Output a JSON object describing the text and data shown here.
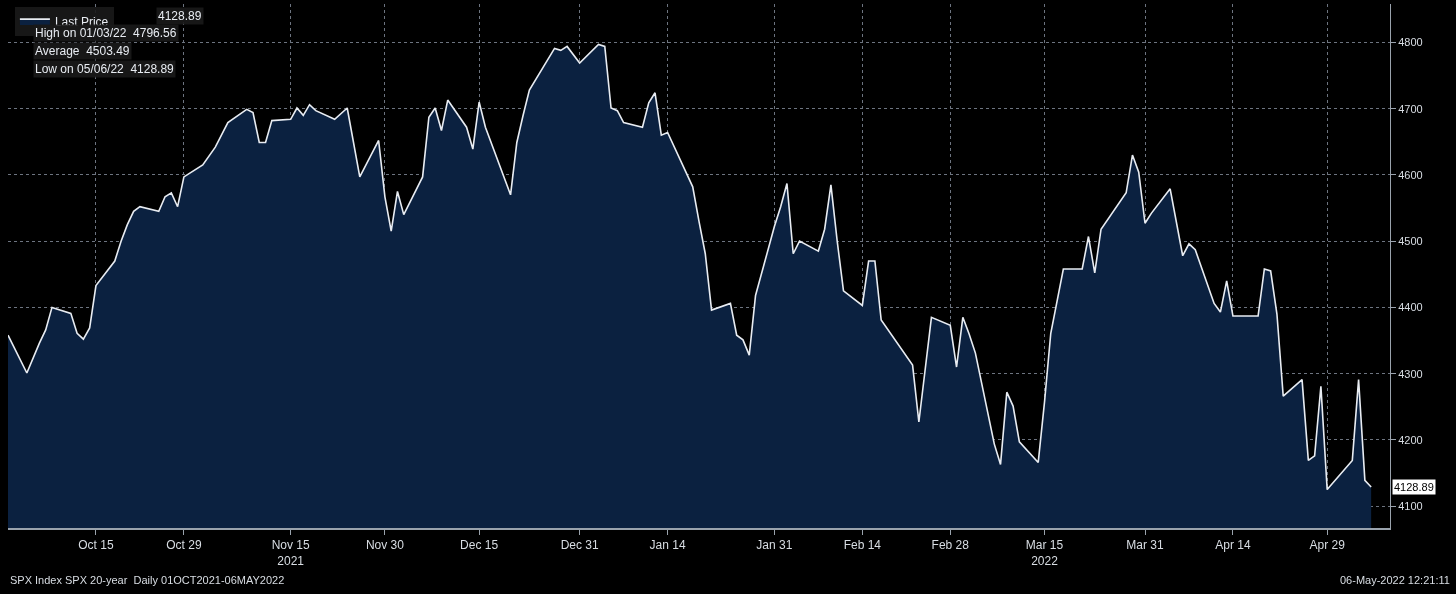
{
  "chart_data": {
    "type": "area",
    "x": [
      "2021-10-01",
      "2021-10-04",
      "2021-10-06",
      "2021-10-07",
      "2021-10-08",
      "2021-10-11",
      "2021-10-12",
      "2021-10-13",
      "2021-10-14",
      "2021-10-15",
      "2021-10-18",
      "2021-10-19",
      "2021-10-20",
      "2021-10-21",
      "2021-10-22",
      "2021-10-25",
      "2021-10-26",
      "2021-10-27",
      "2021-10-28",
      "2021-10-29",
      "2021-11-01",
      "2021-11-03",
      "2021-11-05",
      "2021-11-08",
      "2021-11-09",
      "2021-11-10",
      "2021-11-11",
      "2021-11-12",
      "2021-11-15",
      "2021-11-16",
      "2021-11-17",
      "2021-11-18",
      "2021-11-19",
      "2021-11-22",
      "2021-11-24",
      "2021-11-26",
      "2021-11-29",
      "2021-11-30",
      "2021-12-01",
      "2021-12-02",
      "2021-12-03",
      "2021-12-06",
      "2021-12-07",
      "2021-12-08",
      "2021-12-09",
      "2021-12-10",
      "2021-12-13",
      "2021-12-14",
      "2021-12-15",
      "2021-12-16",
      "2021-12-20",
      "2021-12-21",
      "2021-12-22",
      "2021-12-23",
      "2021-12-27",
      "2021-12-28",
      "2021-12-29",
      "2021-12-31",
      "2022-01-03",
      "2022-01-04",
      "2022-01-05",
      "2022-01-06",
      "2022-01-07",
      "2022-01-10",
      "2022-01-11",
      "2022-01-12",
      "2022-01-13",
      "2022-01-14",
      "2022-01-18",
      "2022-01-19",
      "2022-01-20",
      "2022-01-21",
      "2022-01-24",
      "2022-01-25",
      "2022-01-26",
      "2022-01-27",
      "2022-01-28",
      "2022-01-31",
      "2022-02-01",
      "2022-02-02",
      "2022-02-03",
      "2022-02-04",
      "2022-02-07",
      "2022-02-08",
      "2022-02-09",
      "2022-02-10",
      "2022-02-11",
      "2022-02-14",
      "2022-02-15",
      "2022-02-16",
      "2022-02-17",
      "2022-02-22",
      "2022-02-23",
      "2022-02-25",
      "2022-02-28",
      "2022-03-01",
      "2022-03-02",
      "2022-03-03",
      "2022-03-04",
      "2022-03-07",
      "2022-03-08",
      "2022-03-09",
      "2022-03-10",
      "2022-03-11",
      "2022-03-14",
      "2022-03-15",
      "2022-03-16",
      "2022-03-18",
      "2022-03-21",
      "2022-03-22",
      "2022-03-23",
      "2022-03-24",
      "2022-03-28",
      "2022-03-29",
      "2022-03-30",
      "2022-03-31",
      "2022-04-01",
      "2022-04-04",
      "2022-04-06",
      "2022-04-07",
      "2022-04-08",
      "2022-04-11",
      "2022-04-12",
      "2022-04-13",
      "2022-04-14",
      "2022-04-18",
      "2022-04-19",
      "2022-04-20",
      "2022-04-21",
      "2022-04-22",
      "2022-04-25",
      "2022-04-26",
      "2022-04-27",
      "2022-04-28",
      "2022-04-29",
      "2022-05-03",
      "2022-05-04",
      "2022-05-05",
      "2022-05-06"
    ],
    "series": [
      {
        "name": "Last Price",
        "color": "#0b2140",
        "values": [
          4358,
          4301,
          4346,
          4366,
          4400,
          4391,
          4361,
          4352,
          4369,
          4433,
          4470,
          4500,
          4525,
          4545,
          4552,
          4545,
          4567,
          4573,
          4552,
          4597,
          4615,
          4642,
          4679,
          4699,
          4694,
          4649,
          4649,
          4682,
          4684,
          4701,
          4690,
          4706,
          4697,
          4684,
          4701,
          4597,
          4652,
          4567,
          4515,
          4575,
          4540,
          4597,
          4687,
          4701,
          4667,
          4713,
          4672,
          4639,
          4710,
          4672,
          4570,
          4649,
          4690,
          4728,
          4791,
          4788,
          4794,
          4769,
          4797,
          4794,
          4701,
          4697,
          4679,
          4672,
          4709,
          4724,
          4660,
          4664,
          4582,
          4530,
          4481,
          4396,
          4406,
          4358,
          4351,
          4328,
          4418,
          4522,
          4552,
          4587,
          4481,
          4500,
          4485,
          4518,
          4585,
          4500,
          4425,
          4403,
          4470,
          4470,
          4381,
          4313,
          4227,
          4385,
          4373,
          4310,
          4385,
          4360,
          4331,
          4194,
          4163,
          4272,
          4251,
          4197,
          4166,
          4257,
          4361,
          4458,
          4458,
          4507,
          4452,
          4518,
          4573,
          4630,
          4604,
          4527,
          4542,
          4579,
          4478,
          4496,
          4487,
          4406,
          4393,
          4440,
          4387,
          4387,
          4458,
          4455,
          4390,
          4266,
          4291,
          4169,
          4176,
          4281,
          4125,
          4169,
          4291,
          4139,
          4129
        ]
      }
    ],
    "ylim": [
      4067,
      4858
    ],
    "yticks": [
      4100,
      4200,
      4300,
      4400,
      4500,
      4600,
      4700,
      4800
    ],
    "xlim": [
      "2021-10-01",
      "2022-05-09"
    ],
    "xticks": [
      {
        "value": "2021-10-15",
        "label": "Oct 15"
      },
      {
        "value": "2021-10-29",
        "label": "Oct 29"
      },
      {
        "value": "2021-11-15",
        "label": "Nov 15\n2021"
      },
      {
        "value": "2021-11-30",
        "label": "Nov 30"
      },
      {
        "value": "2021-12-15",
        "label": "Dec 15"
      },
      {
        "value": "2021-12-31",
        "label": "Dec 31"
      },
      {
        "value": "2022-01-14",
        "label": "Jan 14"
      },
      {
        "value": "2022-01-31",
        "label": "Jan 31"
      },
      {
        "value": "2022-02-14",
        "label": "Feb 14"
      },
      {
        "value": "2022-02-28",
        "label": "Feb 28"
      },
      {
        "value": "2022-03-15",
        "label": "Mar 15\n2022"
      },
      {
        "value": "2022-03-31",
        "label": "Mar 31"
      },
      {
        "value": "2022-04-14",
        "label": "Apr 14"
      },
      {
        "value": "2022-04-29",
        "label": "Apr 29"
      }
    ],
    "grid": true,
    "legend": "top left",
    "annotations": [
      "4128.89",
      "High on 01/03/22  4796.56",
      "Average  4503.49",
      "Low on 05/06/22  4128.89",
      "SPX Index SPX 20-year  Daily 01OCT2021-06MAY2022",
      "06-May-2022 12:21:11",
      "4128.89"
    ]
  }
}
